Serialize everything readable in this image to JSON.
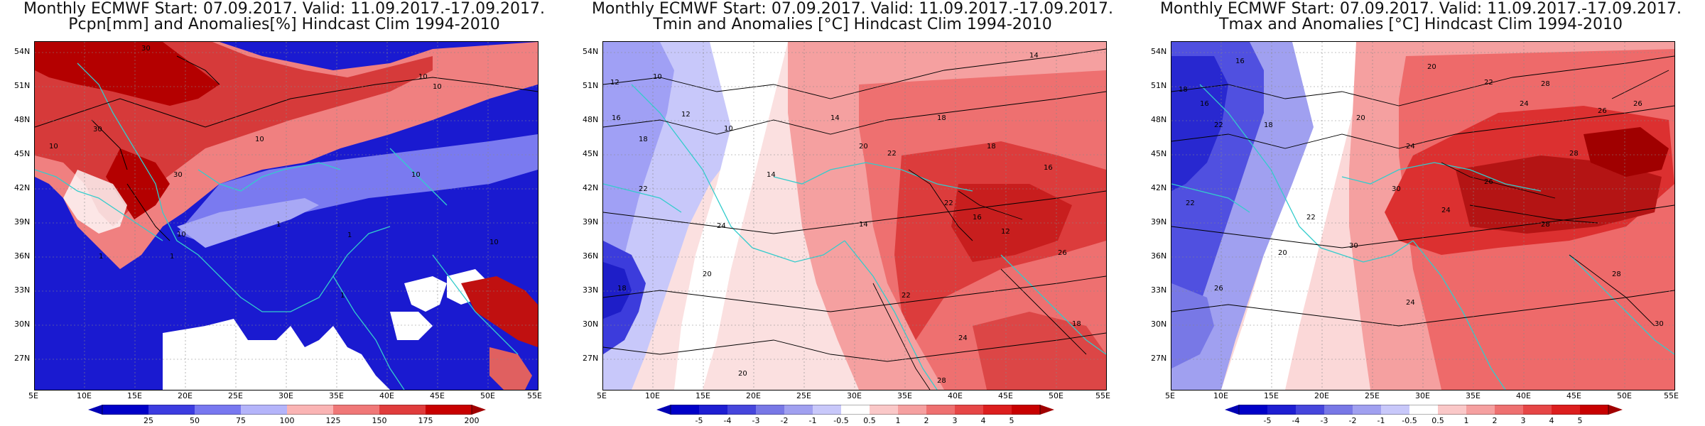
{
  "panels": [
    {
      "title_line1": "Monthly ECMWF Start: 07.09.2017. Valid: 11.09.2017.-17.09.2017.",
      "title_line2": "Pcpn[mm] and Anomalies[%] Hindcast Clim 1994-2010",
      "colorbar": [
        "25",
        "50",
        "75",
        "100",
        "125",
        "150",
        "175",
        "200"
      ],
      "contour_labels": [
        "30",
        "10",
        "10",
        "30",
        "10",
        "10",
        "10",
        "30",
        "10",
        "1",
        "1",
        "1",
        "1",
        "1",
        "10"
      ],
      "palette": "precip"
    },
    {
      "title_line1": "Monthly ECMWF Start: 07.09.2017. Valid: 11.09.2017.-17.09.2017.",
      "title_line2": "Tmin and Anomalies [°C] Hindcast Clim 1994-2010",
      "colorbar": [
        "-5",
        "-4",
        "-3",
        "-2",
        "-1",
        "-0.5",
        "0.5",
        "1",
        "2",
        "3",
        "4",
        "5"
      ],
      "contour_labels": [
        "12",
        "10",
        "14",
        "16",
        "12",
        "18",
        "14",
        "18",
        "10",
        "20",
        "22",
        "18",
        "16",
        "14",
        "24",
        "22",
        "20",
        "18",
        "14",
        "20",
        "22",
        "24",
        "26",
        "28",
        "22",
        "16",
        "12",
        "18"
      ],
      "palette": "temp"
    },
    {
      "title_line1": "Monthly ECMWF Start: 07.09.2017. Valid: 11.09.2017.-17.09.2017.",
      "title_line2": "Tmax and Anomalies [°C] Hindcast Clim 1994-2010",
      "colorbar": [
        "-5",
        "-4",
        "-3",
        "-2",
        "-1",
        "-0.5",
        "0.5",
        "1",
        "2",
        "3",
        "4",
        "5"
      ],
      "contour_labels": [
        "16",
        "18",
        "20",
        "22",
        "24",
        "26",
        "28",
        "22",
        "18",
        "16",
        "20",
        "24",
        "26",
        "28",
        "30",
        "22",
        "26",
        "24",
        "28",
        "30",
        "26",
        "22",
        "20",
        "24",
        "28",
        "30"
      ],
      "palette": "temp"
    }
  ],
  "lat_ticks": [
    "54N",
    "51N",
    "48N",
    "45N",
    "42N",
    "39N",
    "36N",
    "33N",
    "30N",
    "27N"
  ],
  "lon_ticks": [
    "5E",
    "10E",
    "15E",
    "20E",
    "25E",
    "30E",
    "35E",
    "40E",
    "45E",
    "50E",
    "55E"
  ],
  "colors": {
    "coast": "#33cccc",
    "contour": "#000000",
    "deep_blue": "#0000c8",
    "deep_red": "#b40000"
  }
}
